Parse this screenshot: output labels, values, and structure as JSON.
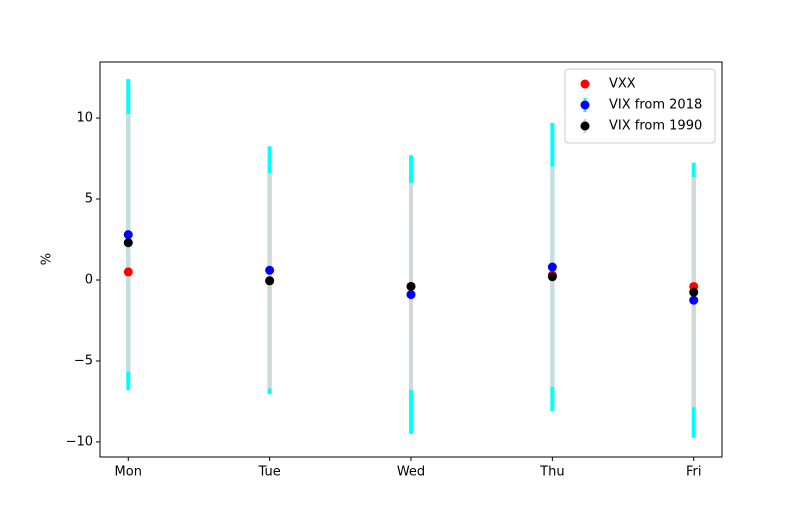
{
  "chart_data": {
    "type": "errorbar",
    "ylabel": "%",
    "categories": [
      "Mon",
      "Tue",
      "Wed",
      "Thu",
      "Fri"
    ],
    "ylim": [
      -10.93,
      13.46
    ],
    "yticks": [
      {
        "value": -10,
        "label": "−10"
      },
      {
        "value": -5,
        "label": "−5"
      },
      0,
      5,
      10
    ],
    "legend": "upper right",
    "series": [
      {
        "name": "VXX",
        "color": "#ff0000",
        "values": [
          0.5,
          -0.05,
          -0.4,
          0.3,
          -0.4
        ]
      },
      {
        "name": "VIX from 2018",
        "color": "#0000ff",
        "error_color": "#00ffff",
        "values": [
          2.8,
          0.6,
          -0.9,
          0.8,
          -1.25
        ],
        "errors": [
          9.6,
          7.65,
          8.6,
          8.9,
          8.5
        ]
      },
      {
        "name": "VIX from 1990",
        "color": "#000000",
        "error_color": "#d0d8d8",
        "values": [
          2.3,
          -0.05,
          -0.4,
          0.2,
          -0.75
        ],
        "errors": [
          7.95,
          6.65,
          6.4,
          6.8,
          7.1
        ]
      }
    ]
  }
}
